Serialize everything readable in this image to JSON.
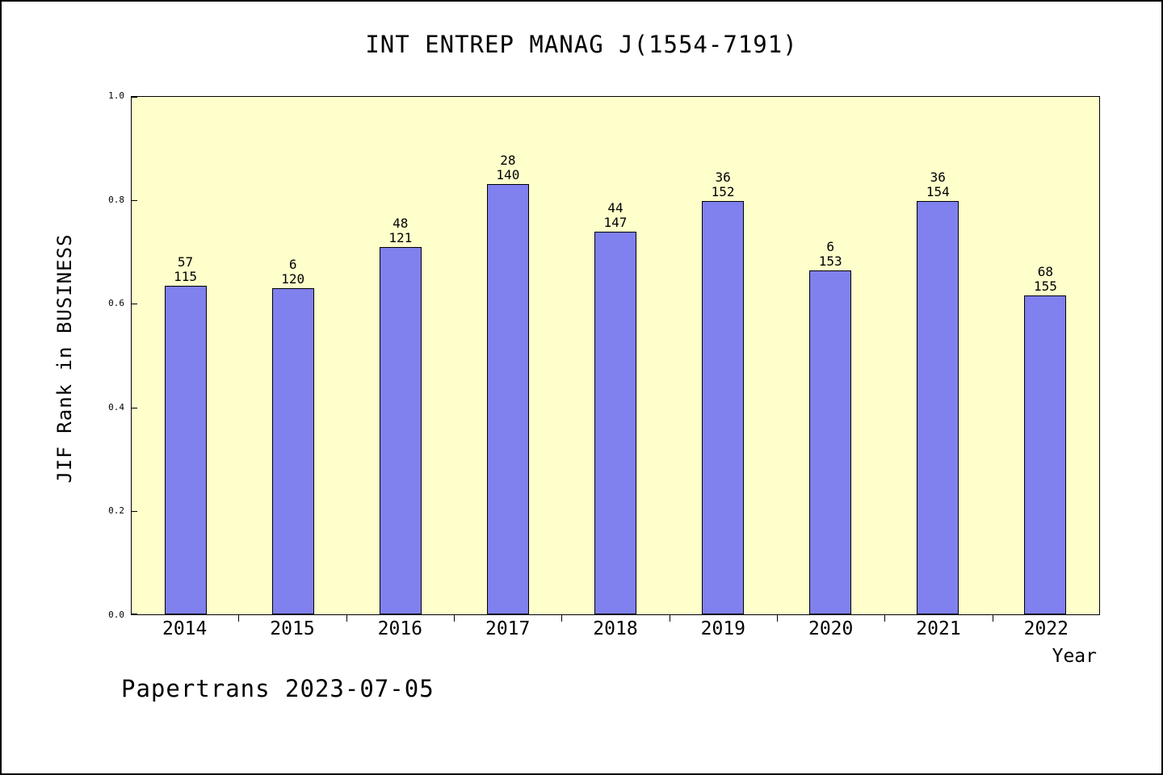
{
  "footer": "Papertrans 2023-07-05",
  "colors": {
    "bar": "#8080ee",
    "bar_edge": "#000000",
    "plot_background": "#ffffcc",
    "frame": "#000000"
  },
  "chart_data": {
    "type": "bar",
    "title": "INT ENTREP MANAG J(1554-7191)",
    "xlabel": "Year",
    "ylabel": "JIF Rank in BUSINESS",
    "ylim": [
      0.0,
      1.0
    ],
    "yticks": [
      0.0,
      0.2,
      0.4,
      0.6,
      0.8,
      1.0
    ],
    "grid": false,
    "legend": "none",
    "categories": [
      "2014",
      "2015",
      "2016",
      "2017",
      "2018",
      "2019",
      "2020",
      "2021",
      "2022"
    ],
    "values": [
      0.635,
      0.63,
      0.71,
      0.832,
      0.74,
      0.798,
      0.664,
      0.798,
      0.616
    ],
    "bar_label_top": [
      "57",
      "6",
      "48",
      "28",
      "44",
      "36",
      "6",
      "36",
      "68"
    ],
    "bar_label_bottom": [
      "115",
      "120",
      "121",
      "140",
      "147",
      "152",
      "153",
      "154",
      "155"
    ]
  }
}
